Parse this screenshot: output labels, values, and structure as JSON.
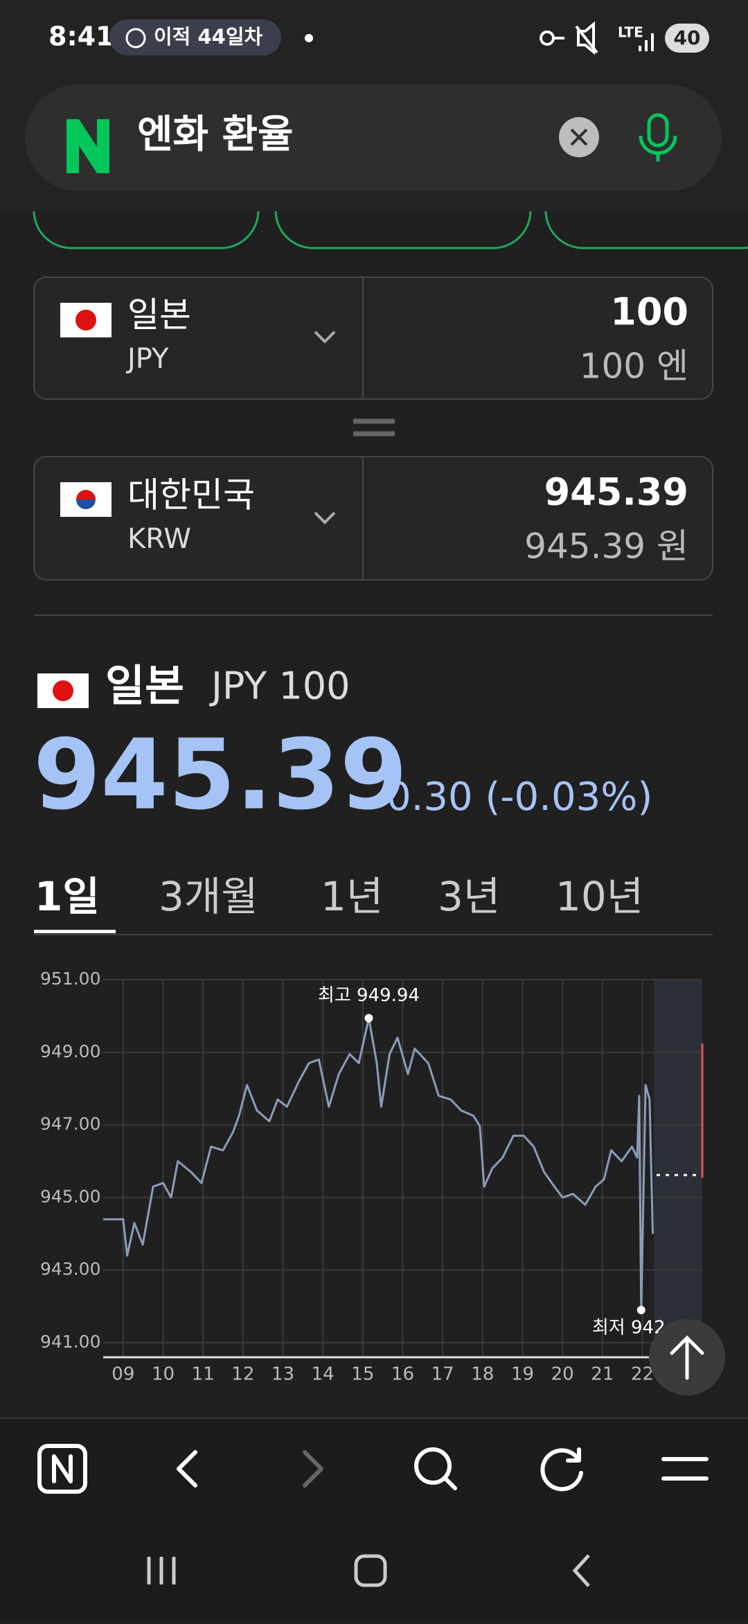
{
  "status_bar": {
    "time": "8:41",
    "pill": "이적 44일차",
    "network": "LTE",
    "battery": "40"
  },
  "search": {
    "query": "엔화 환율"
  },
  "converter": {
    "from": {
      "country": "일본",
      "code": "JPY",
      "amount": "100",
      "amount_text": "100 엔"
    },
    "to": {
      "country": "대한민국",
      "code": "KRW",
      "amount": "945.39",
      "amount_text": "945.39 원"
    }
  },
  "rate": {
    "country": "일본",
    "code": "JPY 100",
    "value": "945.39",
    "change": "0.30 (-0.03%)"
  },
  "tabs": [
    "1일",
    "3개월",
    "1년",
    "3년",
    "10년"
  ],
  "chart": {
    "type": "line",
    "x": [
      8.5,
      9.0,
      9.1,
      9.28,
      9.49,
      9.75,
      10.0,
      10.2,
      10.37,
      10.7,
      10.96,
      11.2,
      11.5,
      11.75,
      11.9,
      12.1,
      12.35,
      12.66,
      12.87,
      13.1,
      13.4,
      13.65,
      13.9,
      14.15,
      14.4,
      14.67,
      14.9,
      15.15,
      15.35,
      15.46,
      15.67,
      15.87,
      16.13,
      16.3,
      16.64,
      16.9,
      17.2,
      17.46,
      17.77,
      17.93,
      18.04,
      18.24,
      18.5,
      18.77,
      19.03,
      19.28,
      19.54,
      19.8,
      20.0,
      20.26,
      20.57,
      20.83,
      21.04,
      21.22,
      21.48,
      21.74,
      21.87,
      21.92,
      21.97,
      22.08,
      22.18,
      22.26
    ],
    "series": [
      {
        "color": "#8c9cba",
        "values": [
          944.4,
          944.4,
          943.4,
          944.3,
          943.7,
          945.3,
          945.4,
          945.0,
          946.0,
          945.7,
          945.4,
          946.4,
          946.3,
          946.8,
          947.25,
          948.1,
          947.4,
          947.1,
          947.7,
          947.5,
          948.2,
          948.7,
          948.8,
          947.5,
          948.4,
          948.95,
          948.7,
          949.94,
          948.7,
          947.5,
          948.95,
          949.4,
          948.4,
          949.1,
          948.7,
          947.8,
          947.7,
          947.4,
          947.25,
          946.97,
          945.3,
          945.8,
          946.1,
          946.7,
          946.7,
          946.4,
          945.7,
          945.3,
          945.0,
          945.1,
          944.8,
          945.3,
          945.5,
          946.3,
          946.0,
          946.4,
          946.1,
          947.8,
          941.9,
          948.1,
          947.7,
          944.0
        ]
      }
    ],
    "xlim": [
      8.5,
      23.5
    ],
    "ylim": [
      940.6,
      951
    ],
    "xticks": [
      {
        "value": 9,
        "label": "09"
      },
      10,
      11,
      12,
      13,
      14,
      15,
      16,
      17,
      18,
      19,
      20,
      21,
      22
    ],
    "yticks": [
      {
        "value": 941,
        "label": "941.00"
      },
      {
        "value": 943,
        "label": "943.00"
      },
      {
        "value": 945,
        "label": "945.00"
      },
      {
        "value": 947,
        "label": "947.00"
      },
      {
        "value": 949,
        "label": "949.00"
      },
      {
        "value": 951,
        "label": "951.00"
      }
    ],
    "grid": true,
    "annotations": [
      {
        "label": "최고 949.94",
        "x": 15.15,
        "y": 949.94
      },
      {
        "label": "최저 942",
        "x": 21.97,
        "y": 941.9
      }
    ]
  }
}
